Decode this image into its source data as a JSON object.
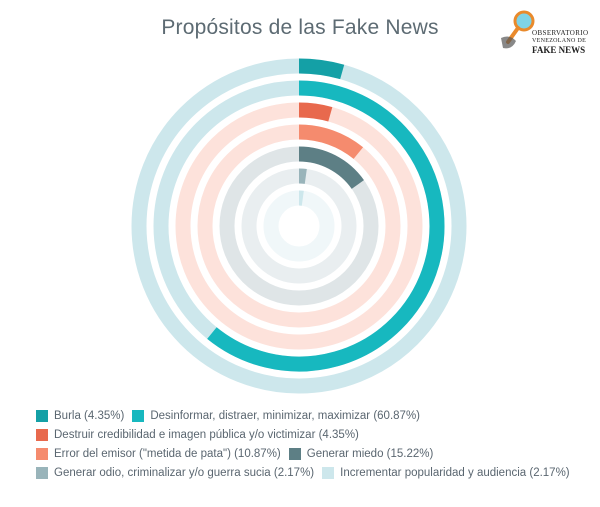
{
  "header": {
    "title": "Propósitos de las Fake News"
  },
  "logo": {
    "line1": "OBSERVATORIO",
    "line2": "VENEZOLANO DE",
    "line3": "FAKE NEWS"
  },
  "colors": {
    "burla": "#14a0a6",
    "desinformar": "#17b8bf",
    "destruir": "#e8694d",
    "error": "#f58b6e",
    "miedo": "#5d7f85",
    "odio": "#99b4ba",
    "popularidad": "#cde7ec"
  },
  "chart_data": {
    "type": "radial-bar",
    "title": "Propósitos de las Fake News",
    "max": 100,
    "legend_position": "bottom",
    "series": [
      {
        "name": "Burla",
        "value": 4.35,
        "label": "Burla (4.35%)",
        "color": "#14a0a6",
        "track": "#cde7ec"
      },
      {
        "name": "Desinformar, distraer, minimizar, maximizar",
        "value": 60.87,
        "label": "Desinformar, distraer, minimizar, maximizar (60.87%)",
        "color": "#17b8bf",
        "track": "#cde7ec"
      },
      {
        "name": "Destruir credibilidad e imagen pública y/o victimizar",
        "value": 4.35,
        "label": "Destruir credibilidad e imagen pública y/o victimizar (4.35%)",
        "color": "#e8694d",
        "track": "#fde2db"
      },
      {
        "name": "Error del emisor (\"metida de pata\")",
        "value": 10.87,
        "label": "Error del emisor (\"metida de pata\") (10.87%)",
        "color": "#f58b6e",
        "track": "#fde2db"
      },
      {
        "name": "Generar miedo",
        "value": 15.22,
        "label": "Generar miedo (15.22%)",
        "color": "#5d7f85",
        "track": "#dfe5e7"
      },
      {
        "name": "Generar odio, criminalizar y/o guerra sucia",
        "value": 2.17,
        "label": "Generar odio, criminalizar y/o guerra sucia (2.17%)",
        "color": "#99b4ba",
        "track": "#e9eef0"
      },
      {
        "name": "Incrementar popularidad y audiencia",
        "value": 2.17,
        "label": "Incrementar popularidad y audiencia (2.17%)",
        "color": "#cde7ec",
        "track": "#f0f7f9"
      }
    ]
  }
}
